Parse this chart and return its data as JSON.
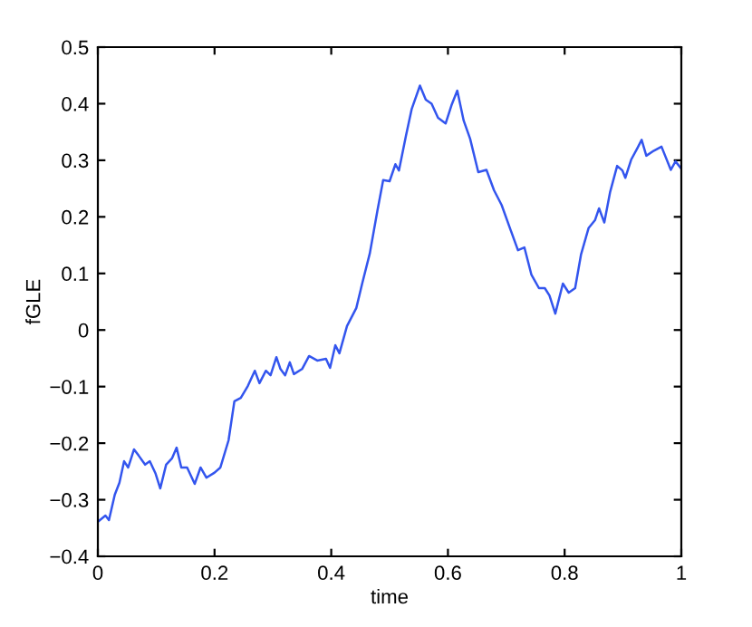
{
  "chart_data": {
    "type": "line",
    "xlabel": "time",
    "ylabel": "fGLE",
    "xlim": [
      0,
      1
    ],
    "ylim": [
      -0.4,
      0.5
    ],
    "xticks": [
      0,
      0.2,
      0.4,
      0.6,
      0.8,
      1
    ],
    "yticks": [
      -0.4,
      -0.3,
      -0.2,
      -0.1,
      0,
      0.1,
      0.2,
      0.3,
      0.4,
      0.5
    ],
    "grid": false,
    "marker": "none",
    "line_style": "solid",
    "series": [
      {
        "color": "#3355ee",
        "x": [
          0,
          0.013,
          0.019,
          0.029,
          0.037,
          0.045,
          0.052,
          0.062,
          0.07,
          0.081,
          0.089,
          0.099,
          0.107,
          0.117,
          0.127,
          0.135,
          0.143,
          0.153,
          0.166,
          0.176,
          0.186,
          0.2,
          0.21,
          0.224,
          0.234,
          0.245,
          0.257,
          0.269,
          0.277,
          0.288,
          0.296,
          0.306,
          0.313,
          0.321,
          0.329,
          0.336,
          0.35,
          0.362,
          0.376,
          0.391,
          0.398,
          0.407,
          0.414,
          0.427,
          0.443,
          0.453,
          0.466,
          0.479,
          0.489,
          0.5,
          0.51,
          0.516,
          0.528,
          0.538,
          0.552,
          0.562,
          0.572,
          0.583,
          0.596,
          0.606,
          0.616,
          0.627,
          0.638,
          0.652,
          0.666,
          0.679,
          0.692,
          0.707,
          0.72,
          0.731,
          0.743,
          0.756,
          0.766,
          0.774,
          0.784,
          0.797,
          0.807,
          0.818,
          0.828,
          0.841,
          0.852,
          0.859,
          0.868,
          0.878,
          0.89,
          0.899,
          0.904,
          0.914,
          0.925,
          0.932,
          0.94,
          0.953,
          0.966,
          0.982,
          0.99,
          1.0
        ],
        "values": [
          -0.339,
          -0.328,
          -0.336,
          -0.291,
          -0.27,
          -0.232,
          -0.243,
          -0.211,
          -0.222,
          -0.238,
          -0.232,
          -0.254,
          -0.28,
          -0.238,
          -0.227,
          -0.208,
          -0.243,
          -0.243,
          -0.272,
          -0.243,
          -0.261,
          -0.252,
          -0.243,
          -0.195,
          -0.126,
          -0.12,
          -0.099,
          -0.072,
          -0.094,
          -0.072,
          -0.08,
          -0.048,
          -0.069,
          -0.08,
          -0.057,
          -0.078,
          -0.069,
          -0.046,
          -0.054,
          -0.051,
          -0.067,
          -0.027,
          -0.041,
          0.007,
          0.039,
          0.082,
          0.135,
          0.21,
          0.265,
          0.263,
          0.293,
          0.282,
          0.343,
          0.391,
          0.432,
          0.407,
          0.4,
          0.375,
          0.365,
          0.397,
          0.423,
          0.37,
          0.338,
          0.279,
          0.283,
          0.247,
          0.221,
          0.178,
          0.141,
          0.146,
          0.098,
          0.074,
          0.074,
          0.061,
          0.029,
          0.082,
          0.066,
          0.074,
          0.133,
          0.18,
          0.194,
          0.215,
          0.19,
          0.244,
          0.29,
          0.282,
          0.269,
          0.301,
          0.322,
          0.336,
          0.308,
          0.317,
          0.324,
          0.283,
          0.298,
          0.285
        ]
      }
    ]
  }
}
